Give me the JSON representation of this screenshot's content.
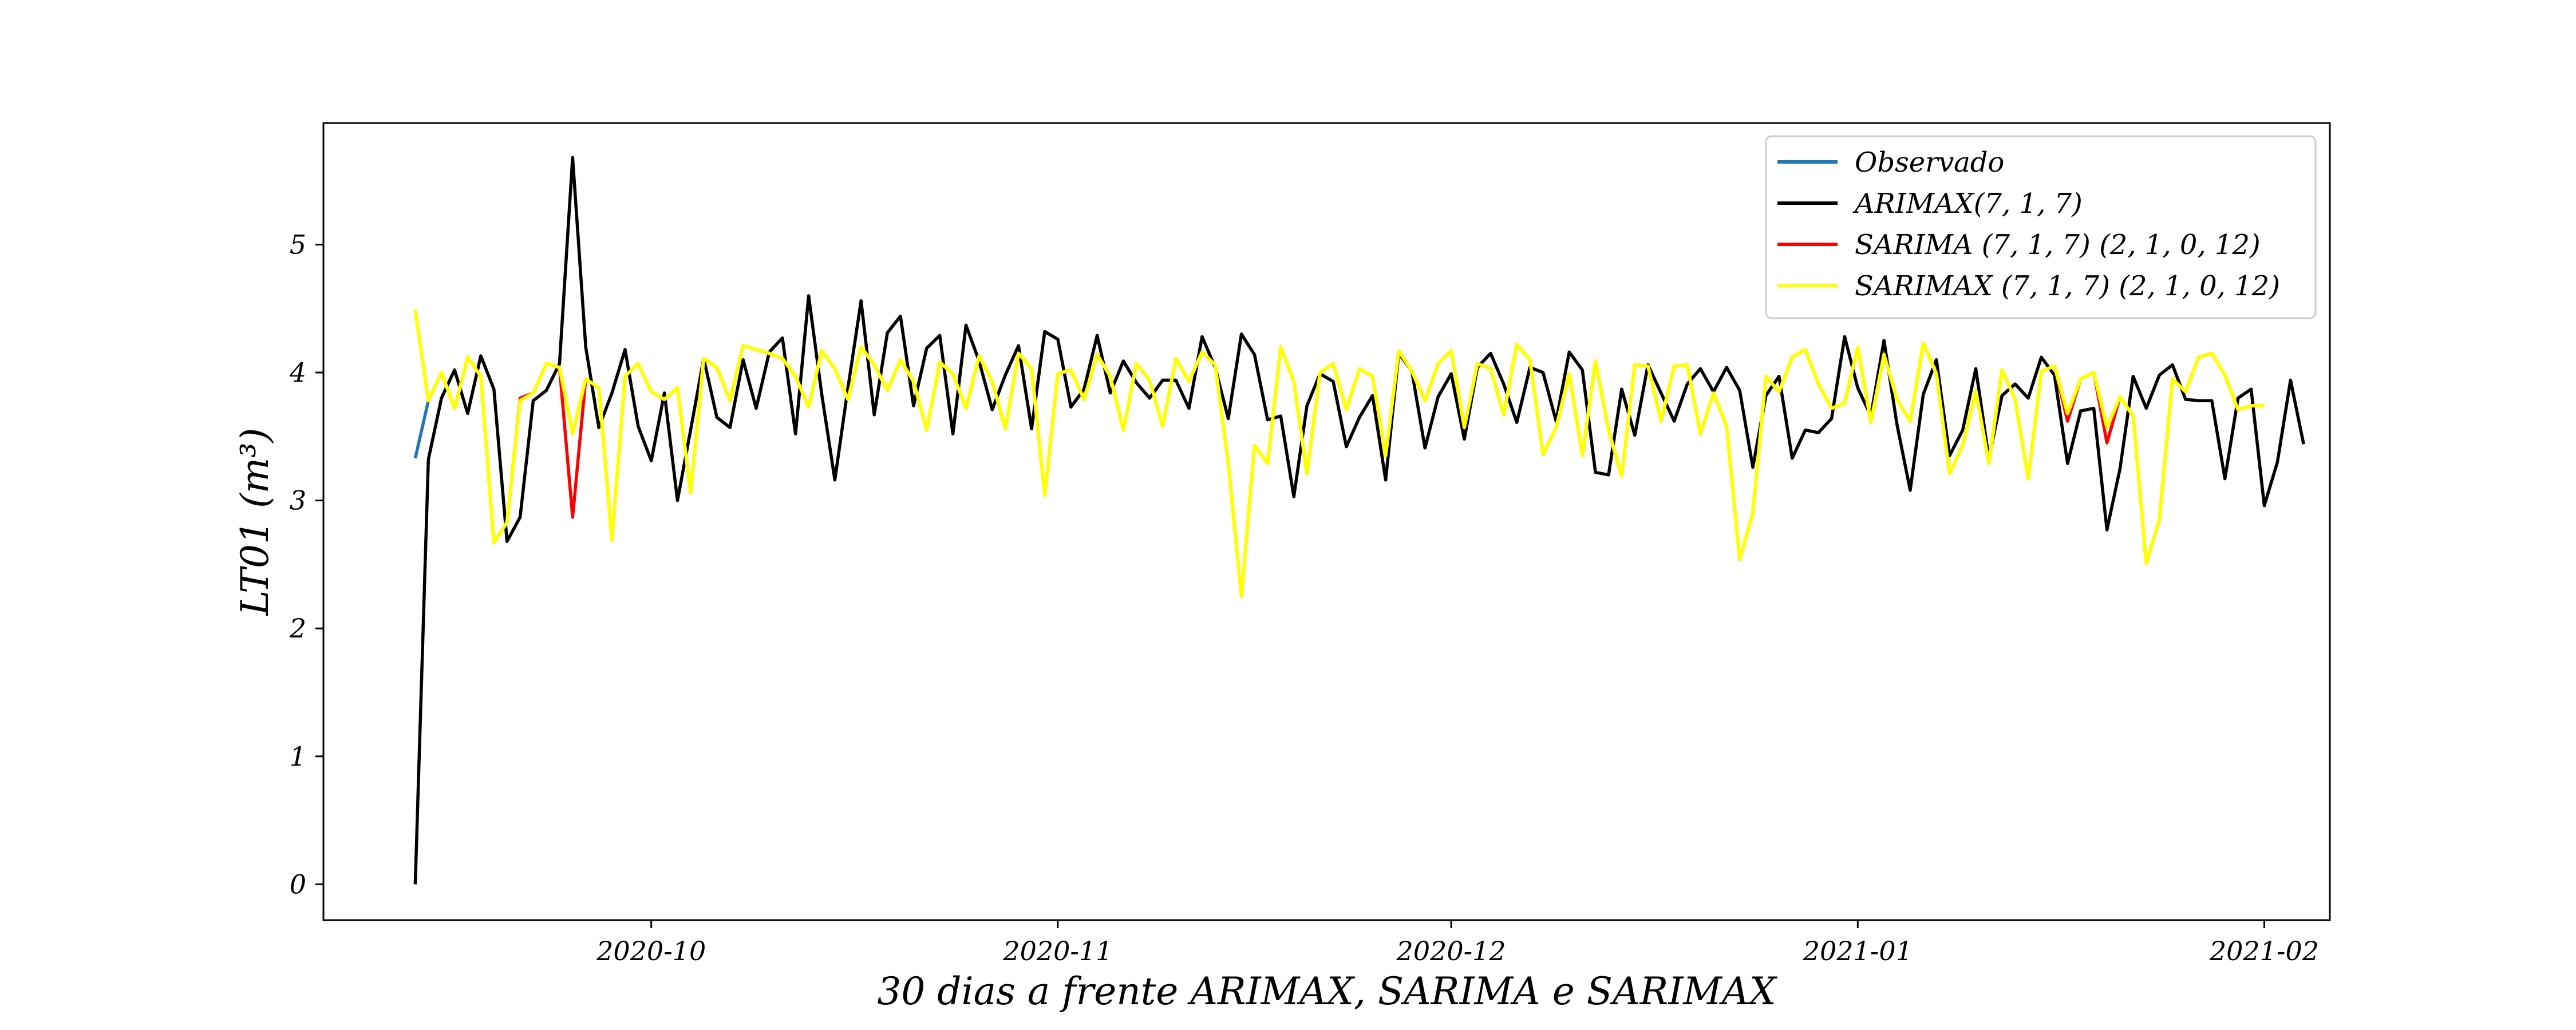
{
  "chart_data": {
    "type": "line",
    "xlabel": "30 dias a frente ARIMAX, SARIMA e SARIMAX",
    "ylabel": "LT01 (m³)",
    "xlim": [
      "2020-09-06",
      "2021-02-06"
    ],
    "ylim": [
      -0.28,
      5.95
    ],
    "x_ticks": [
      {
        "date": "2020-10-01",
        "label": "2020-10"
      },
      {
        "date": "2020-11-01",
        "label": "2020-11"
      },
      {
        "date": "2020-12-01",
        "label": "2020-12"
      },
      {
        "date": "2021-01-01",
        "label": "2021-01"
      },
      {
        "date": "2021-02-01",
        "label": "2021-02"
      }
    ],
    "y_ticks": [
      0,
      1,
      2,
      3,
      4,
      5
    ],
    "grid": false,
    "legend_position": "top-right",
    "start_date": "2020-09-13",
    "series": [
      {
        "name": "Observado",
        "color": "#1f77b4",
        "values": [
          3.33,
          3.78,
          4.0,
          3.72,
          4.12,
          3.97,
          2.67,
          2.83,
          3.78,
          3.84,
          4.07,
          4.04,
          3.52,
          3.95,
          3.88,
          2.69,
          3.97,
          4.07,
          3.85,
          3.79,
          3.88,
          3.06,
          4.11,
          4.04,
          3.78,
          4.21,
          4.18,
          4.15,
          4.11,
          3.97,
          3.73,
          4.17,
          4.03,
          3.79,
          4.2,
          4.06,
          3.86,
          4.1,
          3.93,
          3.55,
          4.08,
          3.99,
          3.72,
          4.13,
          3.93,
          3.56,
          4.15,
          4.03,
          3.04,
          3.99,
          4.02,
          3.79,
          4.14,
          3.97,
          3.55,
          4.07,
          3.94,
          3.58,
          4.11,
          3.93,
          4.16,
          4.06,
          3.29,
          2.25,
          3.43,
          3.29,
          4.2,
          3.93,
          3.21,
          4.0,
          4.07,
          3.71,
          4.03,
          3.97,
          3.35,
          4.17,
          4.01,
          3.78,
          4.07,
          4.17,
          3.57,
          4.07,
          4.03,
          3.67,
          4.22,
          4.1,
          3.36,
          3.57,
          3.99,
          3.35,
          4.09,
          3.55,
          3.19,
          4.06,
          4.05,
          3.62,
          4.05,
          4.06,
          3.52,
          3.84,
          3.58,
          2.54,
          2.9,
          3.97,
          3.85,
          4.12,
          4.18,
          3.91,
          3.72,
          3.76,
          4.2,
          3.61,
          4.14,
          3.79,
          3.62,
          4.23,
          3.99,
          3.21,
          3.43,
          3.86,
          3.29,
          4.02,
          3.79,
          3.17,
          4.01,
          4.05,
          3.68,
          3.95,
          4.0,
          3.57,
          3.81,
          3.66,
          2.51,
          2.85,
          3.95,
          3.85,
          4.12,
          4.15,
          3.98,
          3.71,
          3.74,
          3.74
        ]
      },
      {
        "name": "ARIMAX(7, 1, 7)",
        "color": "#000000",
        "values": [
          0.0,
          3.32,
          3.8,
          4.02,
          3.68,
          4.13,
          3.87,
          2.68,
          2.87,
          3.78,
          3.86,
          4.07,
          5.68,
          4.2,
          3.57,
          3.84,
          4.18,
          3.58,
          3.31,
          3.84,
          3.0,
          3.55,
          4.11,
          3.65,
          3.57,
          4.1,
          3.72,
          4.16,
          4.27,
          3.52,
          4.6,
          3.83,
          3.16,
          3.88,
          4.56,
          3.67,
          4.31,
          4.44,
          3.74,
          4.19,
          4.29,
          3.52,
          4.37,
          4.09,
          3.71,
          3.98,
          4.21,
          3.56,
          4.32,
          4.26,
          3.73,
          3.87,
          4.29,
          3.84,
          4.09,
          3.92,
          3.8,
          3.94,
          3.94,
          3.72,
          4.28,
          4.04,
          3.64,
          4.3,
          4.14,
          3.63,
          3.66,
          3.03,
          3.74,
          3.99,
          3.93,
          3.42,
          3.65,
          3.82,
          3.16,
          4.15,
          4.01,
          3.41,
          3.81,
          3.99,
          3.48,
          4.04,
          4.15,
          3.91,
          3.61,
          4.04,
          4.0,
          3.62,
          4.16,
          4.02,
          3.22,
          3.2,
          3.87,
          3.51,
          4.06,
          3.84,
          3.62,
          3.91,
          4.03,
          3.85,
          4.04,
          3.86,
          3.26,
          3.82,
          3.97,
          3.33,
          3.55,
          3.53,
          3.64,
          4.28,
          3.88,
          3.66,
          4.25,
          3.59,
          3.08,
          3.83,
          4.1,
          3.35,
          3.55,
          4.03,
          3.33,
          3.82,
          3.91,
          3.8,
          4.12,
          3.98,
          3.29,
          3.7,
          3.72,
          2.77,
          3.25,
          3.97,
          3.72,
          3.98,
          4.06,
          3.79,
          3.78,
          3.78,
          3.17,
          3.8,
          3.87,
          2.96,
          3.3,
          3.94,
          3.44
        ]
      },
      {
        "name": "SARIMA (7, 1, 7) (2, 1, 0, 12)",
        "color": "#ff0000",
        "values": [
          4.49,
          3.78,
          4.0,
          3.72,
          4.12,
          3.97,
          2.67,
          2.83,
          3.8,
          3.84,
          4.07,
          4.04,
          2.87,
          3.95,
          3.88,
          2.69,
          3.97,
          4.07,
          3.85,
          3.79,
          3.88,
          3.06,
          4.11,
          4.04,
          3.78,
          4.21,
          4.18,
          4.15,
          4.11,
          3.97,
          3.73,
          4.17,
          4.03,
          3.79,
          4.2,
          4.06,
          3.86,
          4.1,
          3.93,
          3.55,
          4.08,
          3.99,
          3.72,
          4.13,
          3.93,
          3.56,
          4.15,
          4.03,
          3.04,
          3.99,
          4.02,
          3.79,
          4.14,
          3.97,
          3.55,
          4.07,
          3.94,
          3.58,
          4.11,
          3.93,
          4.16,
          4.06,
          3.29,
          2.25,
          3.43,
          3.29,
          4.2,
          3.93,
          3.21,
          4.0,
          4.07,
          3.71,
          4.03,
          3.97,
          3.35,
          4.17,
          4.01,
          3.78,
          4.07,
          4.17,
          3.57,
          4.07,
          4.03,
          3.67,
          4.22,
          4.1,
          3.36,
          3.57,
          3.99,
          3.35,
          4.09,
          3.55,
          3.19,
          4.06,
          4.05,
          3.62,
          4.05,
          4.06,
          3.52,
          3.84,
          3.58,
          2.54,
          2.9,
          3.97,
          3.85,
          4.12,
          4.18,
          3.91,
          3.72,
          3.76,
          4.2,
          3.61,
          4.14,
          3.79,
          3.62,
          4.23,
          3.99,
          3.21,
          3.43,
          3.86,
          3.29,
          4.02,
          3.79,
          3.17,
          4.01,
          4.05,
          3.62,
          3.95,
          4.0,
          3.45,
          3.81,
          3.66,
          2.51,
          2.85,
          3.95,
          3.85,
          4.12,
          4.15,
          3.98,
          3.71,
          3.74,
          3.74
        ]
      },
      {
        "name": "SARIMAX (7, 1, 7) (2, 1, 0, 12)",
        "color": "#ffff00",
        "values": [
          4.49,
          3.78,
          4.0,
          3.72,
          4.12,
          3.97,
          2.67,
          2.83,
          3.78,
          3.84,
          4.07,
          4.04,
          3.52,
          3.95,
          3.88,
          2.69,
          3.97,
          4.07,
          3.85,
          3.79,
          3.88,
          3.06,
          4.11,
          4.04,
          3.78,
          4.21,
          4.18,
          4.15,
          4.11,
          3.97,
          3.73,
          4.17,
          4.03,
          3.79,
          4.2,
          4.06,
          3.86,
          4.1,
          3.93,
          3.55,
          4.08,
          3.99,
          3.72,
          4.13,
          3.93,
          3.56,
          4.15,
          4.03,
          3.04,
          3.99,
          4.02,
          3.79,
          4.14,
          3.97,
          3.55,
          4.07,
          3.94,
          3.58,
          4.11,
          3.93,
          4.16,
          4.06,
          3.29,
          2.25,
          3.43,
          3.29,
          4.2,
          3.93,
          3.21,
          4.0,
          4.07,
          3.71,
          4.03,
          3.97,
          3.35,
          4.17,
          4.01,
          3.78,
          4.07,
          4.17,
          3.57,
          4.07,
          4.03,
          3.67,
          4.22,
          4.1,
          3.36,
          3.57,
          3.99,
          3.35,
          4.09,
          3.55,
          3.19,
          4.06,
          4.05,
          3.62,
          4.05,
          4.06,
          3.52,
          3.84,
          3.58,
          2.54,
          2.9,
          3.97,
          3.85,
          4.12,
          4.18,
          3.91,
          3.72,
          3.76,
          4.2,
          3.61,
          4.14,
          3.79,
          3.62,
          4.23,
          3.99,
          3.21,
          3.43,
          3.86,
          3.29,
          4.02,
          3.79,
          3.17,
          4.01,
          4.05,
          3.68,
          3.95,
          4.0,
          3.57,
          3.81,
          3.66,
          2.51,
          2.85,
          3.95,
          3.85,
          4.12,
          4.15,
          3.98,
          3.71,
          3.74,
          3.74
        ]
      }
    ]
  }
}
